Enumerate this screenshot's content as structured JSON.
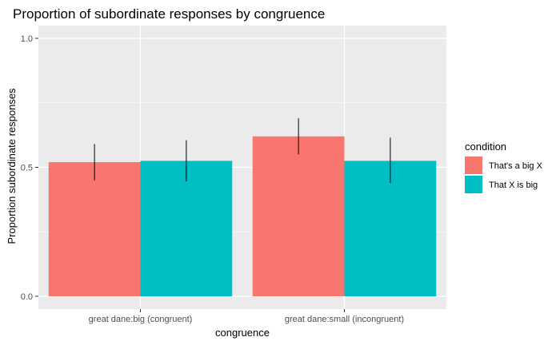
{
  "chart_data": {
    "type": "bar",
    "title": "Proportion of subordinate responses by congruence",
    "xlabel": "congruence",
    "ylabel": "Proportion subordinate responses",
    "categories": [
      "great dane:big (congruent)",
      "great dane:small (incongruent)"
    ],
    "ylim": [
      0,
      1
    ],
    "yticks": [
      0.0,
      0.5,
      1.0
    ],
    "ytick_labels": [
      "0.0",
      "0.5",
      "1.0"
    ],
    "grid": true,
    "legend": {
      "title": "condition",
      "placement": "right"
    },
    "series": [
      {
        "name": "That's a big X",
        "color": "#F8766D",
        "values": [
          0.52,
          0.62
        ],
        "error_low": [
          0.45,
          0.55
        ],
        "error_high": [
          0.59,
          0.69
        ]
      },
      {
        "name": "That X is big",
        "color": "#00BFC4",
        "values": [
          0.525,
          0.525
        ],
        "error_low": [
          0.445,
          0.44
        ],
        "error_high": [
          0.605,
          0.615
        ]
      }
    ],
    "panel_background": "#EBEBEB",
    "grid_color": "#FFFFFF"
  }
}
